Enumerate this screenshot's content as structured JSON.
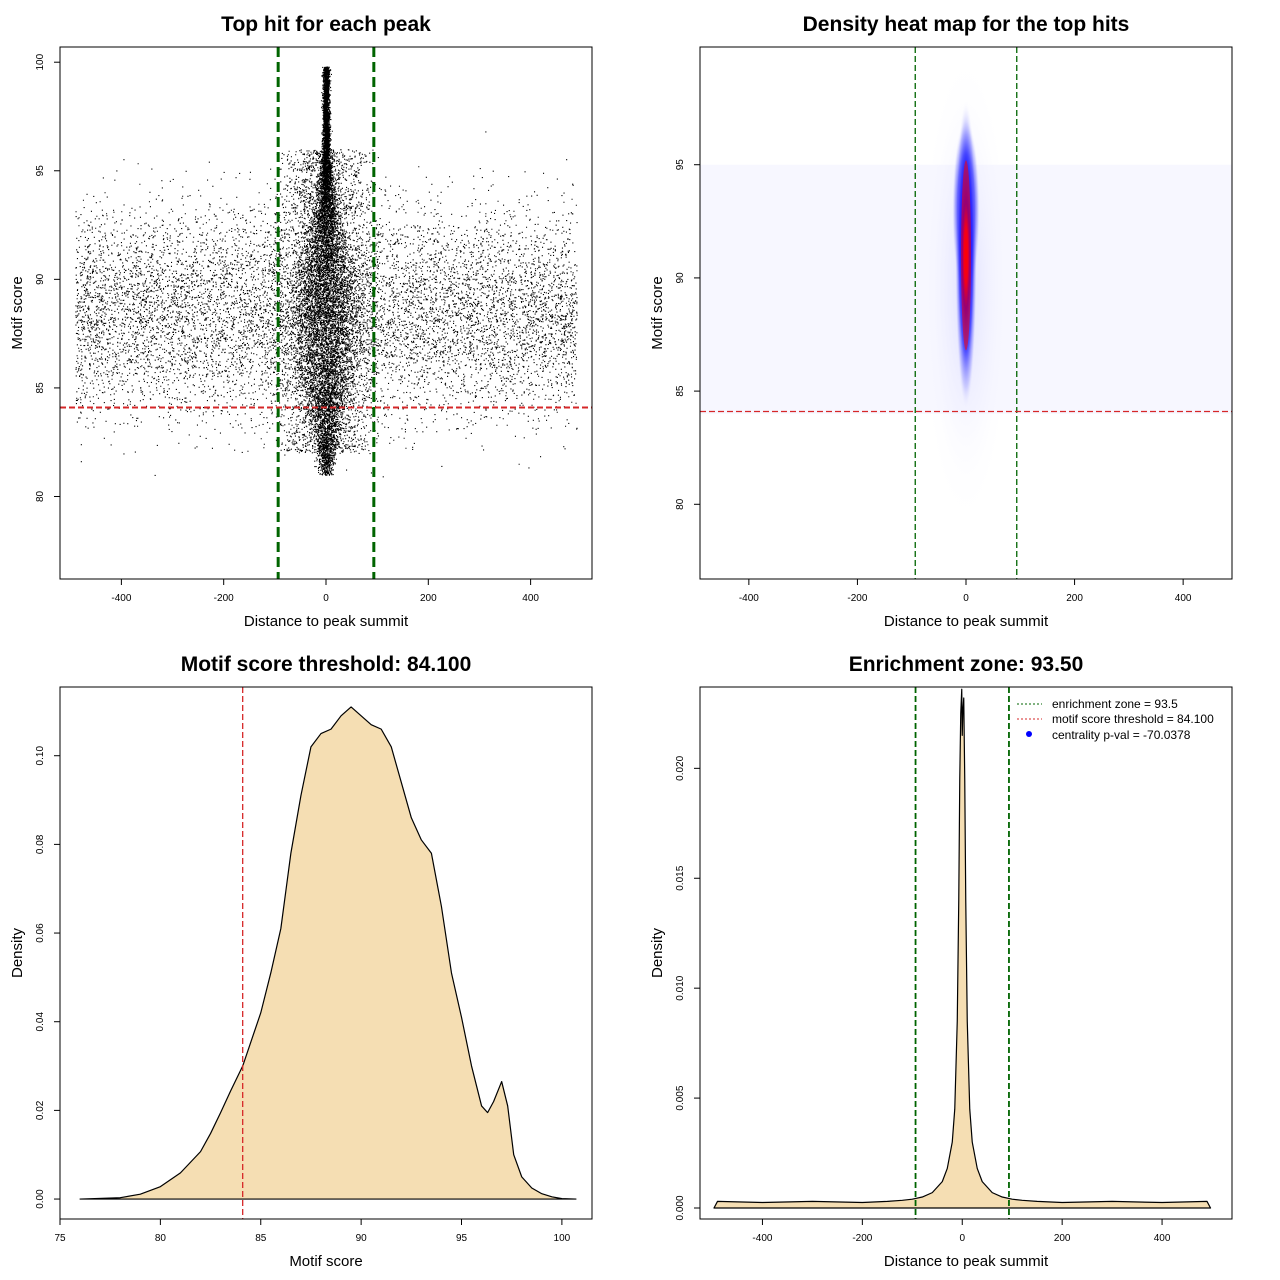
{
  "chart_data": [
    {
      "type": "scatter",
      "title": "Top hit for each peak",
      "xlabel": "Distance to peak summit",
      "ylabel": "Motif score",
      "xlim": [
        -520,
        520
      ],
      "ylim": [
        76.2,
        100.7
      ],
      "xticks": [
        -400,
        -200,
        0,
        200,
        400
      ],
      "yticks": [
        80,
        85,
        90,
        95,
        100
      ],
      "x_range_of_points": [
        -490,
        490
      ],
      "vlines": {
        "values": [
          -93.5,
          93.5
        ],
        "color": "#006400",
        "style": "dashed"
      },
      "hline": {
        "value": 84.1,
        "color": "#d62728",
        "style": "dashed"
      },
      "point_color": "#000000",
      "points_note_values": {
        "center_cluster_x": 0,
        "center_cluster_y_range": [
          81.0,
          99.8
        ],
        "background_y_range": [
          78.5,
          97.0
        ]
      }
    },
    {
      "type": "heatmap",
      "title": "Density heat map for the top hits",
      "xlabel": "Distance to peak summit",
      "ylabel": "Motif score",
      "xlim": [
        -490,
        490
      ],
      "ylim": [
        76.7,
        100.2
      ],
      "xticks": [
        -400,
        -200,
        0,
        200,
        400
      ],
      "yticks": [
        80,
        85,
        90,
        95
      ],
      "vlines": {
        "values": [
          -93.5,
          93.5
        ],
        "color": "#006400",
        "style": "dashed"
      },
      "hline": {
        "value": 84.1,
        "color": "#d62728",
        "style": "dashed"
      },
      "density_peak": {
        "x": 0,
        "y": 91.0
      },
      "colors": [
        "#ffffff",
        "#0000ff",
        "#ff0000"
      ]
    },
    {
      "type": "area",
      "title": "Motif score threshold: 84.100",
      "xlabel": "Motif score",
      "ylabel": "Density",
      "xlim": [
        75.0,
        101.5
      ],
      "ylim": [
        -0.0045,
        0.1155
      ],
      "xticks": [
        75,
        80,
        85,
        90,
        95,
        100
      ],
      "yticks": [
        0.0,
        0.02,
        0.04,
        0.06,
        0.08,
        0.1
      ],
      "ytick_labels": [
        "0.00",
        "0.02",
        "0.04",
        "0.06",
        "0.08",
        "0.10"
      ],
      "fill_color": "#f5deb3",
      "vline": {
        "value": 84.1,
        "color": "#d62728",
        "style": "dashed"
      },
      "x": [
        76.0,
        78.0,
        79.0,
        80.0,
        81.0,
        82.0,
        82.5,
        83.0,
        83.5,
        84.1,
        85.0,
        85.5,
        86.0,
        86.5,
        87.0,
        87.5,
        88.0,
        88.5,
        89.0,
        89.5,
        90.0,
        90.5,
        91.0,
        91.5,
        92.0,
        92.5,
        93.0,
        93.5,
        94.0,
        94.5,
        95.0,
        95.5,
        96.0,
        96.3,
        96.6,
        97.0,
        97.3,
        97.6,
        98.0,
        98.5,
        99.0,
        99.5,
        100.0,
        100.7
      ],
      "y": [
        0.0,
        0.0003,
        0.0011,
        0.0028,
        0.0059,
        0.0107,
        0.0148,
        0.0195,
        0.0244,
        0.03,
        0.042,
        0.051,
        0.061,
        0.078,
        0.091,
        0.102,
        0.105,
        0.106,
        0.109,
        0.111,
        0.109,
        0.107,
        0.106,
        0.102,
        0.094,
        0.086,
        0.081,
        0.078,
        0.066,
        0.051,
        0.041,
        0.03,
        0.021,
        0.0195,
        0.022,
        0.0265,
        0.021,
        0.01,
        0.005,
        0.0025,
        0.0012,
        0.0005,
        0.0001,
        0.0
      ]
    },
    {
      "type": "area",
      "title": "Enrichment zone: 93.50",
      "xlabel": "Distance to peak summit",
      "ylabel": "Density",
      "xlim": [
        -525,
        540
      ],
      "ylim": [
        -0.0005,
        0.0237
      ],
      "xticks": [
        -400,
        -200,
        0,
        200,
        400
      ],
      "yticks": [
        0.0,
        0.005,
        0.01,
        0.015,
        0.02
      ],
      "ytick_labels": [
        "0.000",
        "0.005",
        "0.010",
        "0.015",
        "0.020"
      ],
      "fill_color": "#f5deb3",
      "vlines": {
        "values": [
          -93.5,
          93.5
        ],
        "color": "#006400",
        "style": "dashed"
      },
      "x": [
        -497,
        -490,
        -400,
        -300,
        -200,
        -150,
        -120,
        -100,
        -80,
        -60,
        -40,
        -30,
        -20,
        -15,
        -10,
        -7,
        -5,
        -3,
        -1,
        0,
        1,
        3,
        5,
        7,
        10,
        15,
        20,
        30,
        40,
        60,
        80,
        100,
        120,
        150,
        200,
        300,
        400,
        490,
        497
      ],
      "y": [
        0.0,
        0.0003,
        0.00025,
        0.0003,
        0.00025,
        0.0003,
        0.00035,
        0.0004,
        0.0005,
        0.0007,
        0.0012,
        0.0018,
        0.003,
        0.0045,
        0.0085,
        0.014,
        0.0195,
        0.0225,
        0.0236,
        0.0215,
        0.0225,
        0.0232,
        0.0195,
        0.014,
        0.0085,
        0.0045,
        0.003,
        0.0018,
        0.0012,
        0.0007,
        0.0005,
        0.0004,
        0.00035,
        0.0003,
        0.00025,
        0.0003,
        0.00025,
        0.0003,
        0.0
      ],
      "legend": {
        "placement": "top-right",
        "entries": [
          {
            "label": "enrichment zone = 93.5",
            "color": "#006400",
            "kind": "dotted-line"
          },
          {
            "label": "motif score threshold = 84.100",
            "color": "#d62728",
            "kind": "dotted-line"
          },
          {
            "label": "centrality p-val = -70.0378",
            "color": "#0000ff",
            "kind": "point"
          }
        ]
      }
    }
  ]
}
